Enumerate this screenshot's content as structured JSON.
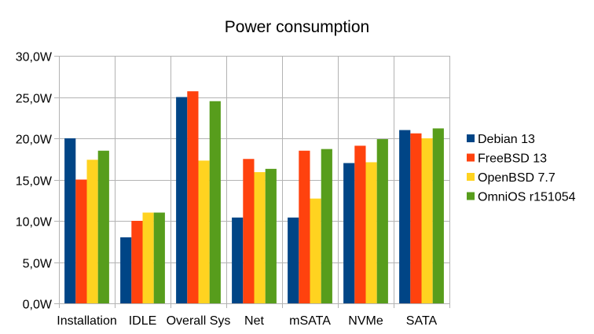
{
  "chart_data": {
    "type": "bar",
    "title": "Power consumption",
    "xlabel": "",
    "ylabel": "",
    "categories": [
      "Installation",
      "IDLE",
      "Overall Sys",
      "Net",
      "mSATA",
      "NVMe",
      "SATA"
    ],
    "series": [
      {
        "name": "Debian 13",
        "color": "#004586",
        "values": [
          20.0,
          8.0,
          25.0,
          10.4,
          10.4,
          17.0,
          21.0
        ]
      },
      {
        "name": "FreeBSD 13",
        "color": "#ff420e",
        "values": [
          15.0,
          10.0,
          25.7,
          17.5,
          18.5,
          19.1,
          20.6
        ]
      },
      {
        "name": "OpenBSD 7.7",
        "color": "#ffd320",
        "values": [
          17.4,
          11.0,
          17.3,
          15.9,
          12.7,
          17.1,
          20.0
        ]
      },
      {
        "name": "OmniOS r151054",
        "color": "#579d1c",
        "values": [
          18.5,
          11.0,
          24.5,
          16.3,
          18.7,
          19.9,
          21.2
        ]
      }
    ],
    "ylim": [
      0,
      30
    ],
    "yticks": [
      0,
      5,
      10,
      15,
      20,
      25,
      30
    ],
    "ytick_labels": [
      "0,0W",
      "5,0W",
      "10,0W",
      "15,0W",
      "20,0W",
      "25,0W",
      "30,0W"
    ],
    "grid": true,
    "legend_position": "right"
  }
}
